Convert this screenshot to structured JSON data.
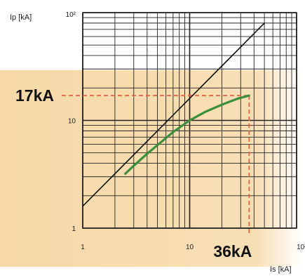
{
  "chart_data": {
    "type": "line",
    "scale": {
      "x": "log",
      "y": "log"
    },
    "xlim": [
      1,
      100
    ],
    "ylim": [
      1,
      100
    ],
    "xlabel": "Is [kA]",
    "ylabel": "Ip [kA]",
    "x_ticks": [
      {
        "value": 1,
        "label": "1"
      },
      {
        "value": 10,
        "label": "10"
      },
      {
        "value": 100,
        "label": "10²"
      }
    ],
    "y_ticks": [
      {
        "value": 1,
        "label": "1"
      },
      {
        "value": 10,
        "label": "10"
      },
      {
        "value": 100,
        "label": "10²"
      }
    ],
    "grid": true,
    "series": [
      {
        "color": "#111111",
        "x": [
          1,
          2,
          5,
          10,
          20,
          36,
          50
        ],
        "y": [
          1.6,
          3.2,
          8,
          16,
          32,
          57.6,
          80
        ]
      },
      {
        "color": "#3b8f3b",
        "x": [
          2.5,
          3,
          4,
          5,
          7,
          10,
          14,
          20,
          28,
          36
        ],
        "y": [
          3.2,
          3.8,
          4.9,
          5.9,
          7.8,
          10,
          12,
          14,
          15.9,
          17
        ]
      }
    ],
    "annotations": [
      {
        "text": "17kA",
        "axis": "y",
        "value": 17,
        "color": "#e8603c"
      },
      {
        "text": "36kA",
        "axis": "x",
        "value": 36,
        "color": "#e8603c"
      }
    ],
    "highlight_color": "#f7d9a8"
  }
}
